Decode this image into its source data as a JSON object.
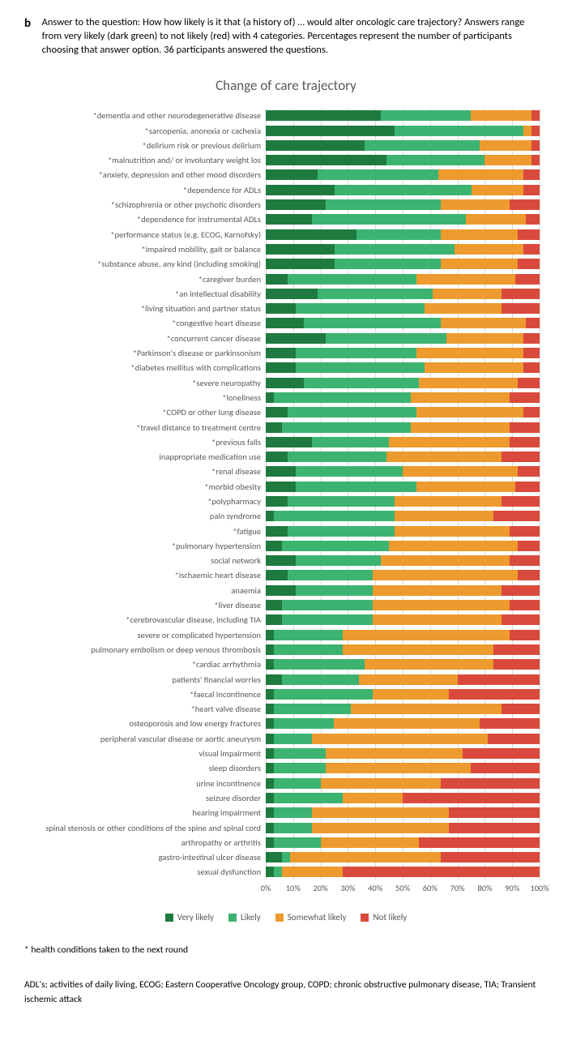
{
  "panel_label": "b",
  "caption": "Answer to the question: How how likely is it that (a history of) … would alter oncologic care trajectory? Answers range from very likely (dark green) to not likely (red) with 4 categories. Percentages represent the number of participants choosing that answer option. 36 participants answered the questions.",
  "chart": {
    "type": "stacked-bar-horizontal",
    "title": "Change of care trajectory",
    "xlim": [
      0,
      100
    ],
    "xtick_step": 10,
    "xtick_labels": [
      "0%",
      "10%",
      "20%",
      "30%",
      "40%",
      "50%",
      "60%",
      "70%",
      "80%",
      "90%",
      "100%"
    ],
    "grid_color": "#d9d9d9",
    "label_color": "#595959",
    "label_fontsize": 10.5,
    "title_fontsize": 17,
    "background_color": "#ffffff",
    "categories": [
      "Very likely",
      "Likely",
      "Somewhat likely",
      "Not likely"
    ],
    "colors": [
      "#1f7a3f",
      "#3cb371",
      "#ed9a2e",
      "#d94a3d"
    ],
    "series": [
      {
        "label": "*dementia and other neurodegenerative disease",
        "v": [
          42,
          33,
          22,
          3
        ]
      },
      {
        "label": "*sarcopenia, anorexia or cachexia",
        "v": [
          47,
          47,
          3,
          3
        ]
      },
      {
        "label": "*delirium risk or previous delirium",
        "v": [
          36,
          42,
          19,
          3
        ]
      },
      {
        "label": "*malnutrition and/ or involuntary weight los",
        "v": [
          44,
          36,
          17,
          3
        ]
      },
      {
        "label": "*anxiety, depression and other mood disorders",
        "v": [
          19,
          44,
          31,
          6
        ]
      },
      {
        "label": "*dependence for ADLs",
        "v": [
          25,
          50,
          19,
          6
        ]
      },
      {
        "label": "*schizophrenia or other psychotic disorders",
        "v": [
          22,
          42,
          25,
          11
        ]
      },
      {
        "label": "*dependence for instrumental ADLs",
        "v": [
          17,
          56,
          22,
          5
        ]
      },
      {
        "label": "*performance status (e.g. ECOG, Karnofsky)",
        "v": [
          33,
          31,
          28,
          8
        ]
      },
      {
        "label": "*impaired mobility, gait or balance",
        "v": [
          25,
          44,
          25,
          6
        ]
      },
      {
        "label": "*substance abuse, any kind (including smoking)",
        "v": [
          25,
          39,
          28,
          8
        ]
      },
      {
        "label": "*caregiver burden",
        "v": [
          8,
          47,
          36,
          9
        ]
      },
      {
        "label": "*an intellectual disability",
        "v": [
          19,
          42,
          25,
          14
        ]
      },
      {
        "label": "*living situation and partner status",
        "v": [
          11,
          47,
          28,
          14
        ]
      },
      {
        "label": "*congestive heart disease",
        "v": [
          14,
          50,
          31,
          5
        ]
      },
      {
        "label": "*concurrent cancer disease",
        "v": [
          22,
          44,
          28,
          6
        ]
      },
      {
        "label": "*Parkinson's disease or parkinsonism",
        "v": [
          11,
          44,
          39,
          6
        ]
      },
      {
        "label": "*diabetes mellitus with complications",
        "v": [
          11,
          47,
          36,
          6
        ]
      },
      {
        "label": "*severe neuropathy",
        "v": [
          14,
          42,
          36,
          8
        ]
      },
      {
        "label": "*loneliness",
        "v": [
          3,
          50,
          36,
          11
        ]
      },
      {
        "label": "*COPD or other lung disease",
        "v": [
          8,
          47,
          39,
          6
        ]
      },
      {
        "label": "*travel distance to treatment centre",
        "v": [
          6,
          47,
          36,
          11
        ]
      },
      {
        "label": "*previous falls",
        "v": [
          17,
          28,
          44,
          11
        ]
      },
      {
        "label": "inappropriate medication use",
        "v": [
          8,
          36,
          42,
          14
        ]
      },
      {
        "label": "*renal disease",
        "v": [
          11,
          39,
          42,
          8
        ]
      },
      {
        "label": "*morbid obesity",
        "v": [
          11,
          44,
          36,
          9
        ]
      },
      {
        "label": "*polypharmacy",
        "v": [
          8,
          39,
          39,
          14
        ]
      },
      {
        "label": "pain syndrome",
        "v": [
          3,
          44,
          36,
          17
        ]
      },
      {
        "label": "*fatigue",
        "v": [
          8,
          39,
          42,
          11
        ]
      },
      {
        "label": "*pulmonary hypertension",
        "v": [
          6,
          39,
          47,
          8
        ]
      },
      {
        "label": "social network",
        "v": [
          11,
          31,
          47,
          11
        ]
      },
      {
        "label": "*ischaemic heart disease",
        "v": [
          8,
          31,
          53,
          8
        ]
      },
      {
        "label": "anaemia",
        "v": [
          11,
          28,
          47,
          14
        ]
      },
      {
        "label": "*liver disease",
        "v": [
          6,
          33,
          50,
          11
        ]
      },
      {
        "label": "*cerebrovascular disease, including TIA",
        "v": [
          6,
          33,
          47,
          14
        ]
      },
      {
        "label": "severe or complicated hypertension",
        "v": [
          3,
          25,
          61,
          11
        ]
      },
      {
        "label": "pulmonary embolism or deep venous thrombosis",
        "v": [
          3,
          25,
          55,
          17
        ]
      },
      {
        "label": "*cardiac arrhythmia",
        "v": [
          3,
          33,
          47,
          17
        ]
      },
      {
        "label": "patients' financial worries",
        "v": [
          6,
          28,
          36,
          30
        ]
      },
      {
        "label": "*faecal Incontinence",
        "v": [
          3,
          36,
          28,
          33
        ]
      },
      {
        "label": "*heart valve disease",
        "v": [
          3,
          28,
          55,
          14
        ]
      },
      {
        "label": "osteoporosis and low energy fractures",
        "v": [
          3,
          22,
          53,
          22
        ]
      },
      {
        "label": "peripheral vascular disease or aortic aneurysm",
        "v": [
          3,
          14,
          64,
          19
        ]
      },
      {
        "label": "visual impairment",
        "v": [
          3,
          19,
          50,
          28
        ]
      },
      {
        "label": "sleep disorders",
        "v": [
          3,
          19,
          53,
          25
        ]
      },
      {
        "label": "urine incontinence",
        "v": [
          3,
          17,
          44,
          36
        ]
      },
      {
        "label": "seizure disorder",
        "v": [
          3,
          25,
          22,
          50
        ]
      },
      {
        "label": "hearing impairment",
        "v": [
          3,
          14,
          50,
          33
        ]
      },
      {
        "label": "spinal stenosis or other conditions of the spine and spinal cord",
        "v": [
          3,
          14,
          50,
          33
        ]
      },
      {
        "label": "arthropathy or arthritis",
        "v": [
          3,
          17,
          36,
          44
        ]
      },
      {
        "label": "gastro-intestinal ulcer disease",
        "v": [
          6,
          3,
          55,
          36
        ]
      },
      {
        "label": "sexual dysfunction",
        "v": [
          3,
          3,
          22,
          72
        ]
      }
    ]
  },
  "footnote_star": "* health conditions taken to the next round",
  "footnote_abbrev": "ADL's; activities of daily living, ECOG; Eastern Cooperative Oncology group, COPD; chronic obstructive pulmonary disease, TIA; Transient ischemic attack"
}
